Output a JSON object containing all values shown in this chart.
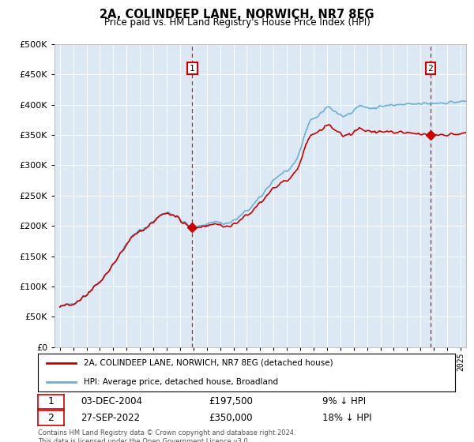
{
  "title": "2A, COLINDEEP LANE, NORWICH, NR7 8EG",
  "subtitle": "Price paid vs. HM Land Registry's House Price Index (HPI)",
  "legend_property": "2A, COLINDEEP LANE, NORWICH, NR7 8EG (detached house)",
  "legend_hpi": "HPI: Average price, detached house, Broadland",
  "footnote": "Contains HM Land Registry data © Crown copyright and database right 2024.\nThis data is licensed under the Open Government Licence v3.0.",
  "marker1_date": "03-DEC-2004",
  "marker1_price": "£197,500",
  "marker1_hpi": "9% ↓ HPI",
  "marker2_date": "27-SEP-2022",
  "marker2_price": "£350,000",
  "marker2_hpi": "18% ↓ HPI",
  "plot_bg_color": "#dce9f5",
  "hpi_color": "#6baed6",
  "property_color": "#cc0000",
  "vline_color": "#cc0000",
  "marker_box_color": "#cc0000",
  "ylim": [
    0,
    500000
  ],
  "yticks": [
    0,
    50000,
    100000,
    150000,
    200000,
    250000,
    300000,
    350000,
    400000,
    450000,
    500000
  ],
  "sale1_year": 2004.917,
  "sale1_value": 197500,
  "sale2_year": 2022.75,
  "sale2_value": 350000,
  "hpi_base_monthly": [
    65000,
    65500,
    66000,
    66800,
    67500,
    68200,
    68900,
    69500,
    70100,
    70800,
    71200,
    71800,
    72500,
    73200,
    74000,
    75000,
    76200,
    77500,
    78800,
    80000,
    81500,
    82800,
    84000,
    85500,
    87000,
    88500,
    90500,
    92500,
    94500,
    96500,
    98500,
    100500,
    102000,
    103800,
    105500,
    107200,
    109000,
    111000,
    113000,
    115000,
    117200,
    119500,
    121800,
    124000,
    126500,
    129000,
    131500,
    134000,
    136500,
    139000,
    141500,
    144000,
    147000,
    150000,
    153000,
    156000,
    159000,
    162000,
    165000,
    168000,
    170500,
    173000,
    175500,
    178000,
    180500,
    182500,
    184000,
    185500,
    187000,
    188500,
    190000,
    191500,
    192000,
    192500,
    193500,
    194500,
    196000,
    197500,
    199000,
    200500,
    202000,
    203500,
    205000,
    206500,
    208000,
    209500,
    211000,
    212500,
    214000,
    215500,
    217000,
    218500,
    220000,
    221000,
    221500,
    221800,
    222000,
    222500,
    222200,
    221800,
    221000,
    220000,
    218500,
    217000,
    215500,
    214000,
    212500,
    211000,
    210000,
    209000,
    208000,
    207000,
    205500,
    204000,
    202500,
    201000,
    199500,
    198500,
    197500,
    196500,
    196000,
    196500,
    197000,
    197500,
    198000,
    199000,
    200000,
    201000,
    201500,
    202000,
    202500,
    203000,
    203500,
    204000,
    204500,
    205000,
    205500,
    206000,
    206500,
    207000,
    207200,
    207000,
    206500,
    206000,
    205500,
    205000,
    204500,
    204000,
    203500,
    203500,
    203800,
    204200,
    204800,
    205500,
    206500,
    207500,
    208500,
    209500,
    210500,
    211500,
    213000,
    214500,
    216000,
    217500,
    219000,
    220500,
    222000,
    223500,
    225000,
    226500,
    228000,
    229500,
    231000,
    233000,
    235000,
    237000,
    239000,
    241000,
    243000,
    245000,
    247000,
    249000,
    251500,
    254000,
    256500,
    259000,
    261500,
    264000,
    266500,
    269000,
    271500,
    274000,
    276000,
    277500,
    279000,
    280500,
    282000,
    283500,
    285000,
    286000,
    287000,
    288000,
    289000,
    290000,
    291000,
    292000,
    293000,
    294000,
    295000,
    297000,
    299500,
    302500,
    306000,
    310000,
    315000,
    320500,
    326000,
    332000,
    338000,
    344000,
    350000,
    356000,
    362000,
    367000,
    371000,
    374000,
    376000,
    377500,
    378000,
    378500,
    379000,
    379500,
    381000,
    383000,
    385000,
    387000,
    389000,
    391000,
    393000,
    395000,
    396000,
    396500,
    396000,
    395000,
    393500,
    392000,
    390500,
    389000,
    387500,
    386000,
    384500,
    383000,
    382000,
    381500,
    381000,
    381000,
    381500,
    382000,
    383000,
    384500,
    386000,
    387500,
    389000,
    390500,
    392000,
    393500,
    395000,
    396500,
    397500,
    398000,
    398200,
    398000,
    397500,
    397000,
    396500,
    396000,
    395500,
    395000,
    394500,
    394000,
    393500,
    393000,
    393000,
    393500,
    394000,
    395000,
    396500,
    398000
  ],
  "num_months": 372,
  "start_year": 1995,
  "start_month": 1
}
